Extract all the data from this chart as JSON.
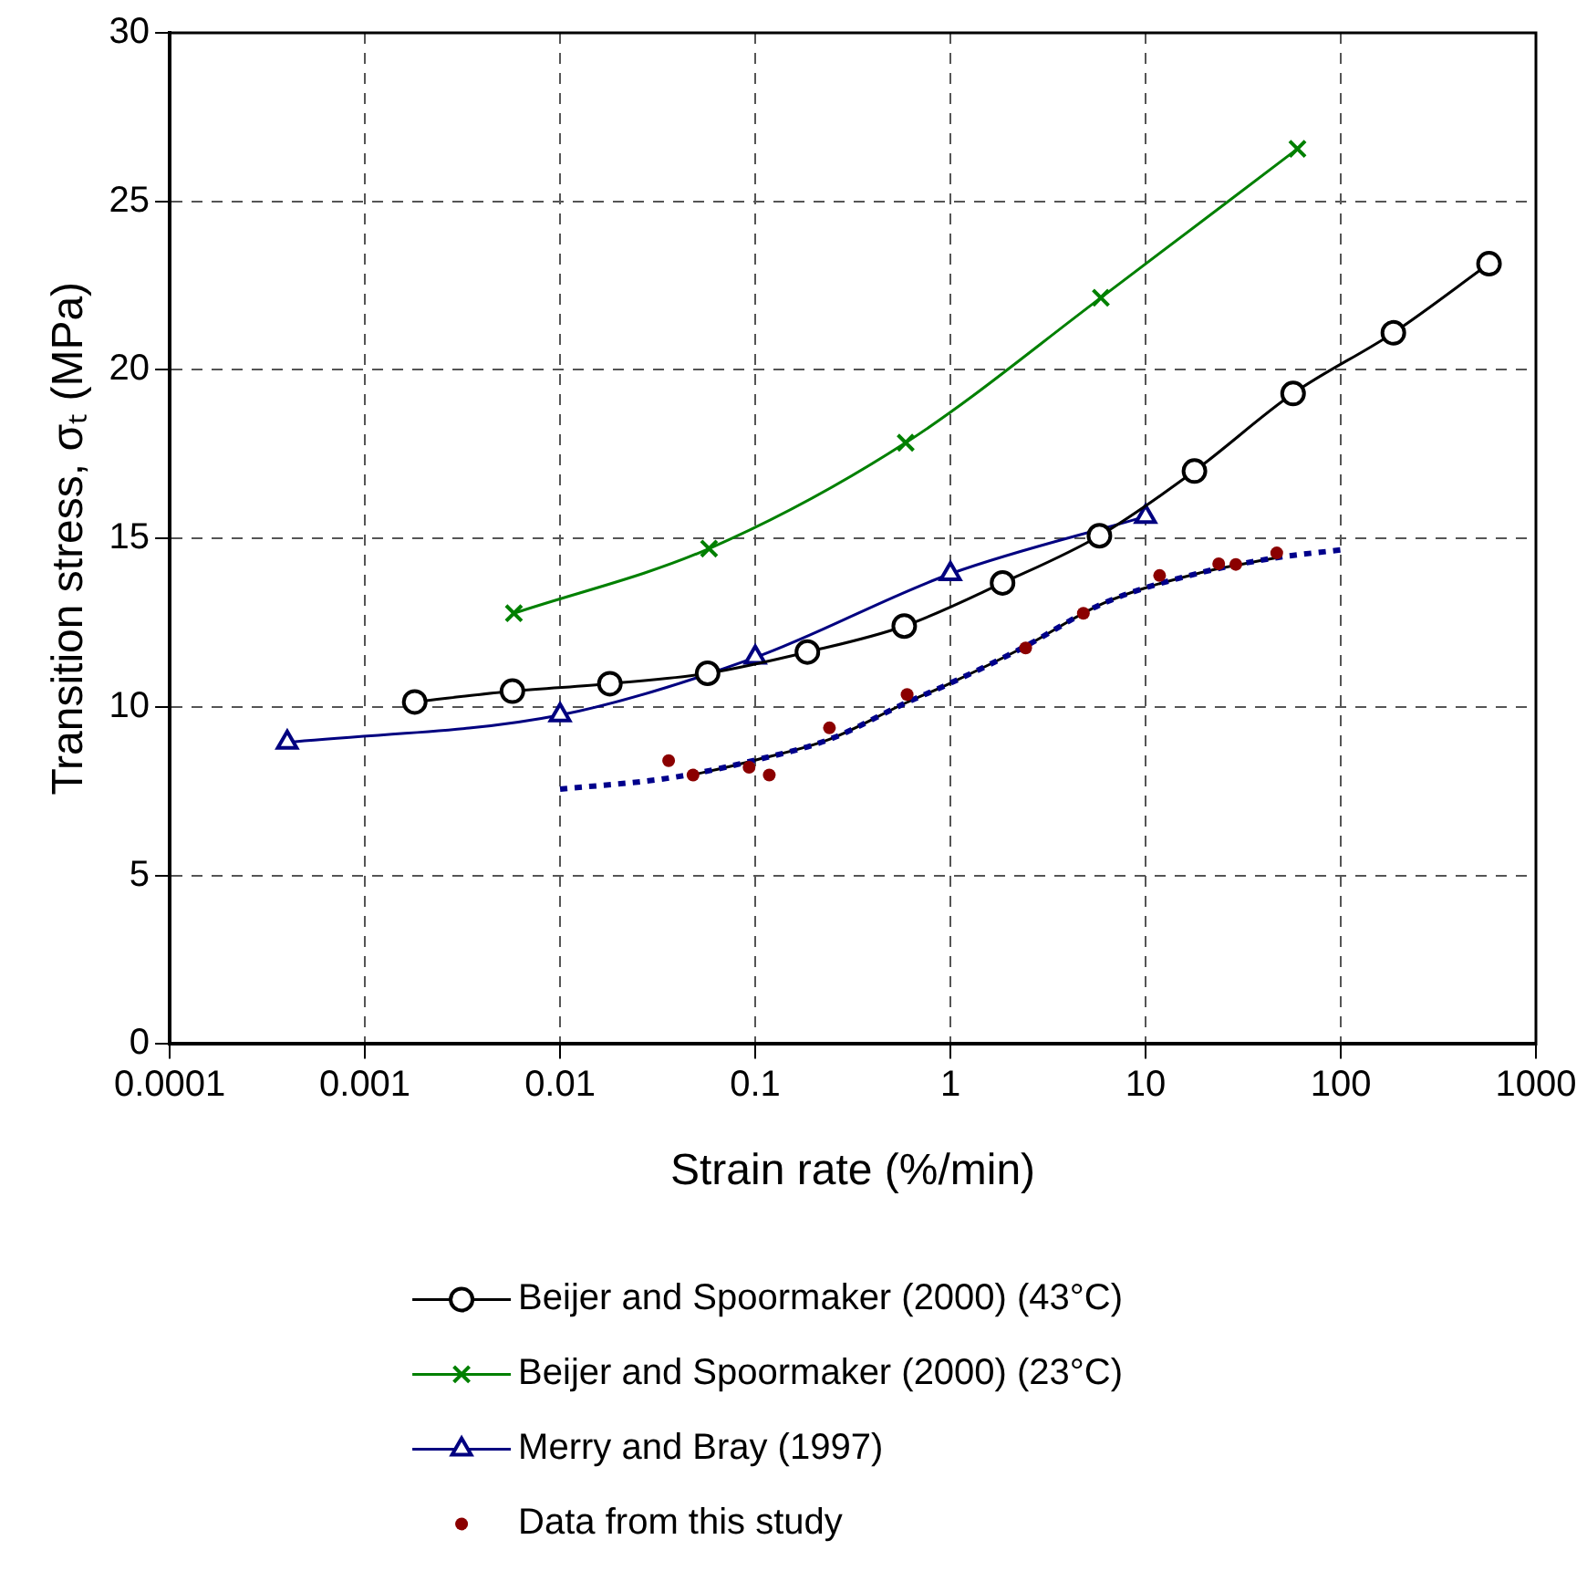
{
  "chart_data": {
    "type": "line",
    "xlabel": "Strain rate (%/min)",
    "ylabel": "Transition stress, σₜ (MPa)",
    "log": "x",
    "xlim": [
      0.0001,
      1000
    ],
    "xticks": [
      0.0001,
      0.001,
      0.01,
      0.1,
      1,
      10,
      100,
      1000
    ],
    "ylim": [
      0,
      30
    ],
    "yticks": [
      0,
      5,
      10,
      15,
      20,
      25,
      30
    ],
    "grid": true,
    "legend": "bottom",
    "series": [
      {
        "name": "Beijer and Spoormaker (2000) (43°C)",
        "type": "line",
        "color": "#000000",
        "marker": "circle",
        "x": [
          0.0018,
          0.0057,
          0.018,
          0.057,
          0.185,
          0.58,
          1.85,
          5.8,
          17.8,
          57,
          186,
          575
        ],
        "values": [
          10.15,
          10.47,
          10.69,
          11.0,
          11.63,
          12.4,
          13.68,
          15.08,
          17.0,
          19.3,
          21.1,
          23.15
        ]
      },
      {
        "name": "Beijer and Spoormaker (2000) (23°C)",
        "type": "line",
        "color": "#008000",
        "marker": "cross",
        "x": [
          0.0058,
          0.058,
          0.59,
          5.9,
          60
        ],
        "values": [
          12.78,
          14.7,
          17.84,
          22.14,
          26.56
        ]
      },
      {
        "name": "Merry and Bray (1997)",
        "type": "line",
        "color": "#000080",
        "marker": "triangle",
        "x": [
          0.0004,
          0.01,
          0.1,
          1,
          10
        ],
        "values": [
          8.95,
          9.76,
          11.47,
          13.95,
          15.65
        ]
      },
      {
        "name": "Data from this study",
        "type": "scatter",
        "color": "#8b0000",
        "marker": "circle",
        "x": [
          0.036,
          0.048,
          0.093,
          0.118,
          0.24,
          0.6,
          2.43,
          4.8,
          11.8,
          23.7,
          29,
          47
        ],
        "values": [
          8.41,
          7.98,
          8.21,
          7.98,
          9.38,
          10.37,
          11.75,
          12.78,
          13.9,
          14.25,
          14.23,
          14.57
        ]
      },
      {
        "type": "line",
        "color": "#00008b",
        "marker": "none",
        "line_style": "dotted",
        "x": [
          0.01,
          0.037,
          0.098,
          0.24,
          0.59,
          0.96,
          2.3,
          6.1,
          19,
          47,
          100
        ],
        "values": [
          7.56,
          7.9,
          8.41,
          9.04,
          10.12,
          10.66,
          11.73,
          13.08,
          13.98,
          14.43,
          14.66
        ]
      },
      {
        "type": "line",
        "color": "#000000",
        "marker": "none",
        "line_style": "solid",
        "x": [
          0.045,
          0.098,
          0.24,
          0.59,
          0.96,
          2.3,
          6.1,
          19,
          47
        ],
        "values": [
          7.95,
          8.41,
          9.04,
          10.12,
          10.66,
          11.73,
          13.08,
          13.98,
          14.43
        ]
      }
    ]
  }
}
